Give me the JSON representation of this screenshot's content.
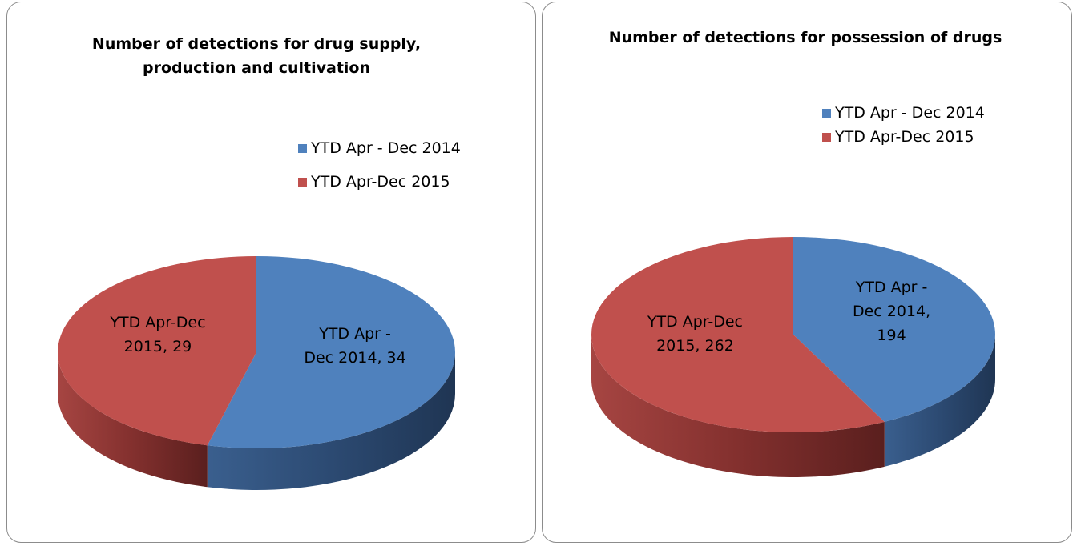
{
  "chart_data": [
    {
      "type": "pie",
      "title": "Number of detections for drug supply, production and cultivation",
      "categories": [
        "YTD Apr - Dec 2014",
        "YTD Apr-Dec 2015"
      ],
      "values": [
        34,
        29
      ],
      "value_labels": [
        "YTD Apr - Dec 2014, 34",
        "YTD Apr-Dec 2015, 29"
      ],
      "colors": [
        "#4f81bd",
        "#c0504d"
      ],
      "legend": "right"
    },
    {
      "type": "pie",
      "title": "Number of detections for possession of drugs",
      "categories": [
        "YTD Apr - Dec 2014",
        "YTD Apr-Dec 2015"
      ],
      "values": [
        194,
        262
      ],
      "value_labels": [
        "YTD Apr - Dec 2014, 194",
        "YTD Apr-Dec 2015, 262"
      ],
      "colors": [
        "#4f81bd",
        "#c0504d"
      ],
      "legend": "right"
    }
  ]
}
